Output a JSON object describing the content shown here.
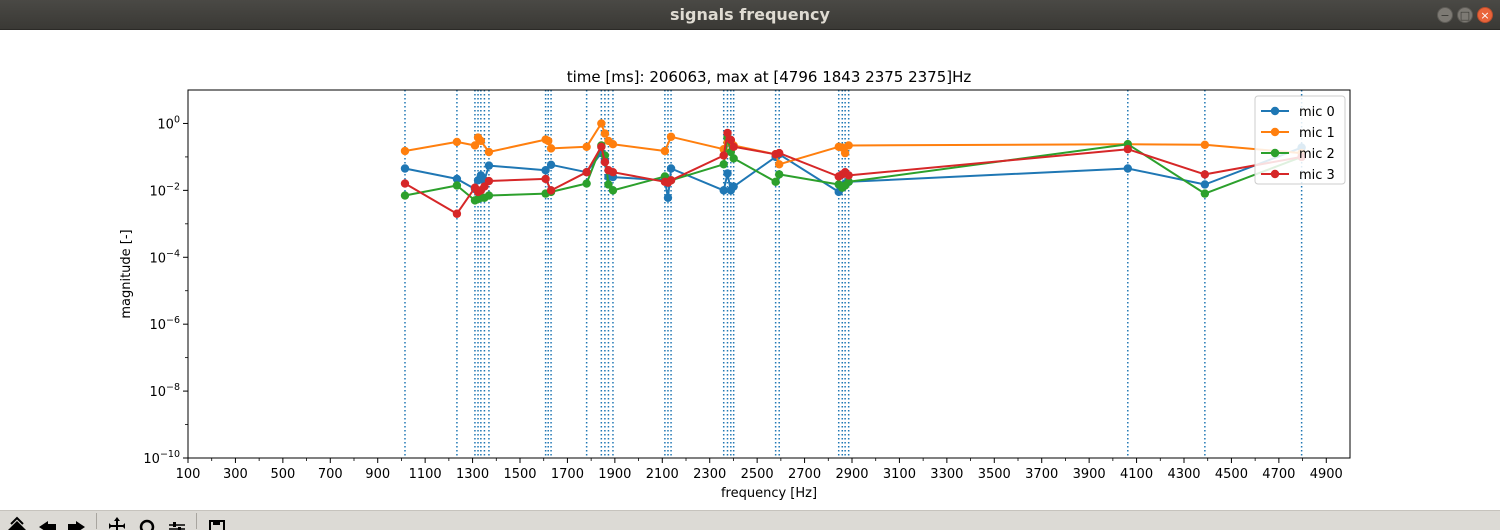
{
  "window": {
    "title": "signals frequency",
    "controls": [
      "minimize-icon",
      "maximize-icon",
      "close-icon"
    ]
  },
  "toolbar": {
    "buttons": [
      "home-icon",
      "back-icon",
      "forward-icon",
      "pan-icon",
      "zoom-icon",
      "configure-subplots-icon",
      "save-icon"
    ]
  },
  "colors": {
    "mic0": "#1f77b4",
    "mic1": "#ff7f0e",
    "mic2": "#2ca02c",
    "mic3": "#d62728",
    "vlines": "#1f77b4",
    "titlebar": "#3c3b37",
    "toolbar": "#dcdad5"
  },
  "chart_data": {
    "type": "line",
    "title": "time [ms]: 206063, max at [4796 1843 2375 2375]Hz",
    "xlabel": "frequency [Hz]",
    "ylabel": "magnitude [-]",
    "xlim": [
      100,
      5000
    ],
    "ylim": [
      1e-10,
      10
    ],
    "yscale": "log",
    "xticks": [
      100,
      300,
      500,
      700,
      900,
      1100,
      1300,
      1500,
      1700,
      1900,
      2100,
      2300,
      2500,
      2700,
      2900,
      3100,
      3300,
      3500,
      3700,
      3900,
      4100,
      4300,
      4500,
      4700,
      4900
    ],
    "yticks": [
      {
        "value": 1,
        "base": "10",
        "exp": "0"
      },
      {
        "value": 0.01,
        "base": "10",
        "exp": "−2"
      },
      {
        "value": 0.0001,
        "base": "10",
        "exp": "−4"
      },
      {
        "value": 1e-06,
        "base": "10",
        "exp": "−6"
      },
      {
        "value": 1e-08,
        "base": "10",
        "exp": "−8"
      },
      {
        "value": 1e-10,
        "base": "10",
        "exp": "−10"
      }
    ],
    "vlines": [
      1015,
      1234,
      1310,
      1323,
      1335,
      1350,
      1369,
      1608,
      1619,
      1631,
      1781,
      1843,
      1858,
      1873,
      1892,
      2111,
      2124,
      2137,
      2359,
      2375,
      2389,
      2401,
      2578,
      2593,
      2844,
      2859,
      2871,
      2886,
      4063,
      4388,
      4796
    ],
    "legend": {
      "placement": "top-right"
    },
    "grid": false,
    "series": [
      {
        "name": "mic 0",
        "x": [
          1015,
          1234,
          1310,
          1323,
          1335,
          1350,
          1369,
          1608,
          1631,
          1781,
          1843,
          1858,
          1873,
          1892,
          2111,
          2124,
          2137,
          2359,
          2375,
          2389,
          2401,
          2578,
          2593,
          2844,
          2859,
          2871,
          2886,
          4063,
          4388,
          4796
        ],
        "y": [
          0.045,
          0.022,
          0.011,
          0.02,
          0.028,
          0.02,
          0.055,
          0.04,
          0.058,
          0.035,
          0.13,
          0.075,
          0.025,
          0.025,
          0.02,
          0.006,
          0.045,
          0.01,
          0.032,
          0.01,
          0.013,
          0.1,
          0.12,
          0.009,
          0.012,
          0.016,
          0.018,
          0.045,
          0.015,
          0.19
        ]
      },
      {
        "name": "mic 1",
        "x": [
          1015,
          1234,
          1310,
          1323,
          1335,
          1369,
          1608,
          1619,
          1631,
          1781,
          1843,
          1858,
          1873,
          1892,
          2111,
          2137,
          2359,
          2375,
          2389,
          2401,
          2578,
          2593,
          2844,
          2859,
          2871,
          2886,
          4063,
          4388,
          4796
        ],
        "y": [
          0.15,
          0.28,
          0.22,
          0.38,
          0.3,
          0.14,
          0.33,
          0.3,
          0.18,
          0.2,
          1.0,
          0.5,
          0.3,
          0.24,
          0.15,
          0.4,
          0.17,
          0.27,
          0.3,
          0.22,
          0.12,
          0.06,
          0.2,
          0.19,
          0.13,
          0.22,
          0.24,
          0.23,
          0.13
        ]
      },
      {
        "name": "mic 2",
        "x": [
          1015,
          1234,
          1310,
          1323,
          1335,
          1350,
          1369,
          1608,
          1631,
          1781,
          1843,
          1858,
          1873,
          1892,
          2111,
          2124,
          2137,
          2359,
          2375,
          2389,
          2401,
          2578,
          2593,
          2844,
          2859,
          2871,
          2886,
          4063,
          4388,
          4796
        ],
        "y": [
          0.007,
          0.014,
          0.005,
          0.0055,
          0.006,
          0.006,
          0.007,
          0.008,
          0.009,
          0.016,
          0.22,
          0.11,
          0.015,
          0.01,
          0.026,
          0.02,
          0.02,
          0.06,
          0.38,
          0.14,
          0.09,
          0.018,
          0.03,
          0.015,
          0.012,
          0.014,
          0.018,
          0.24,
          0.008,
          0.1
        ]
      },
      {
        "name": "mic 3",
        "x": [
          1015,
          1234,
          1310,
          1323,
          1335,
          1350,
          1369,
          1608,
          1631,
          1781,
          1843,
          1858,
          1873,
          1892,
          2111,
          2124,
          2137,
          2359,
          2375,
          2389,
          2401,
          2578,
          2593,
          2844,
          2859,
          2871,
          2886,
          4063,
          4388,
          4796
        ],
        "y": [
          0.016,
          0.002,
          0.012,
          0.009,
          0.01,
          0.013,
          0.019,
          0.022,
          0.01,
          0.035,
          0.2,
          0.07,
          0.04,
          0.035,
          0.018,
          0.017,
          0.02,
          0.11,
          0.52,
          0.32,
          0.2,
          0.12,
          0.13,
          0.026,
          0.03,
          0.035,
          0.028,
          0.17,
          0.03,
          0.1
        ]
      }
    ]
  }
}
